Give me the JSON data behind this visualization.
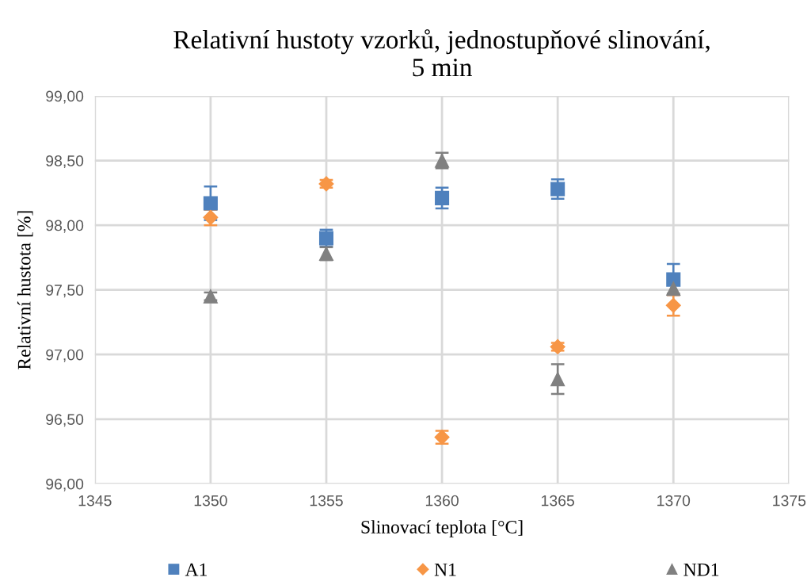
{
  "chart_data": {
    "type": "scatter",
    "title": "Relativní hustoty vzorků, jednostupňové slinování,\n5 min",
    "xlabel": "Slinovací teplota [°C]",
    "ylabel": "Relativní hustota [%]",
    "x": [
      1350,
      1355,
      1360,
      1365,
      1370
    ],
    "series": [
      {
        "name": "A1",
        "color": "#4f81bd",
        "marker": "square",
        "values": [
          98.17,
          97.9,
          98.21,
          98.28,
          97.58
        ],
        "errors": [
          0.13,
          0.065,
          0.08,
          0.075,
          0.12
        ]
      },
      {
        "name": "N1",
        "color": "#f79646",
        "marker": "diamond",
        "values": [
          98.06,
          98.32,
          96.36,
          97.06,
          97.38
        ],
        "errors": [
          0.06,
          0.03,
          0.05,
          0.03,
          0.08
        ]
      },
      {
        "name": "ND1",
        "color": "#808080",
        "marker": "triangle",
        "values": [
          97.45,
          97.78,
          98.5,
          96.81,
          97.51
        ],
        "errors": [
          0.03,
          0.05,
          0.06,
          0.115,
          0.04
        ]
      }
    ],
    "xlim": [
      1345,
      1375
    ],
    "xticks": [
      1345,
      1350,
      1355,
      1360,
      1365,
      1370,
      1375
    ],
    "ylim": [
      96,
      99
    ],
    "yticks": [
      {
        "value": 96,
        "label": "96,00"
      },
      {
        "value": 96.5,
        "label": "96,50"
      },
      {
        "value": 97,
        "label": "97,00"
      },
      {
        "value": 97.5,
        "label": "97,50"
      },
      {
        "value": 98,
        "label": "98,00"
      },
      {
        "value": 98.5,
        "label": "98,50"
      },
      {
        "value": 99,
        "label": "99,00"
      }
    ],
    "grid": true,
    "legend": "bottom"
  }
}
